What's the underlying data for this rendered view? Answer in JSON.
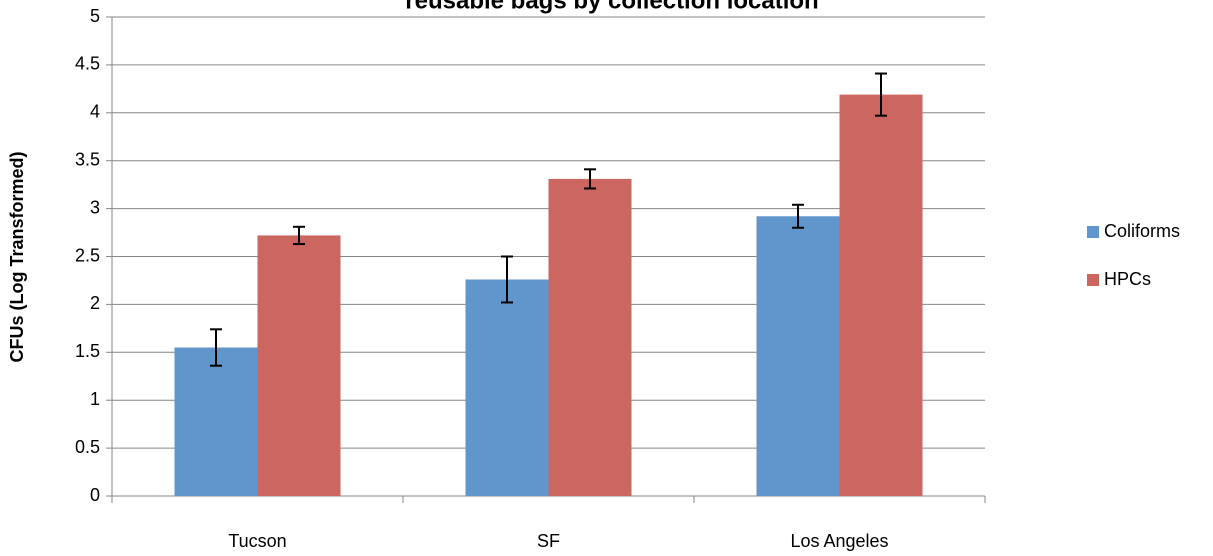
{
  "chart_data": {
    "type": "bar",
    "title": "reusable bags by collection location",
    "y_label": "CFUs (Log Transformed)",
    "categories": [
      "Tucson",
      "SF",
      "Los Angeles"
    ],
    "series": [
      {
        "name": "Coliforms",
        "color": "#6096cc",
        "values": [
          1.55,
          2.26,
          2.92
        ],
        "errors": [
          0.19,
          0.24,
          0.12
        ]
      },
      {
        "name": "HPCs",
        "color": "#cc6660",
        "values": [
          2.72,
          3.31,
          4.19
        ],
        "errors": [
          0.09,
          0.1,
          0.22
        ]
      }
    ],
    "ylim": [
      0,
      5
    ],
    "yticks": [
      0,
      0.5,
      1,
      1.5,
      2,
      2.5,
      3,
      3.5,
      4,
      4.5,
      5
    ],
    "grid": true,
    "legend": "right"
  }
}
